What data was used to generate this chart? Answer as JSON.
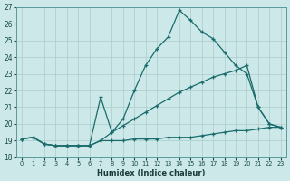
{
  "xlabel": "Humidex (Indice chaleur)",
  "bg_color": "#cce8e8",
  "line_color": "#1a6b6b",
  "grid_color": "#aacccc",
  "xlim": [
    -0.5,
    23.5
  ],
  "ylim": [
    18,
    27
  ],
  "xticks": [
    0,
    1,
    2,
    3,
    4,
    5,
    6,
    7,
    8,
    9,
    10,
    11,
    12,
    13,
    14,
    15,
    16,
    17,
    18,
    19,
    20,
    21,
    22,
    23
  ],
  "yticks": [
    18,
    19,
    20,
    21,
    22,
    23,
    24,
    25,
    26,
    27
  ],
  "line_flat_x": [
    0,
    1,
    2,
    3,
    4,
    5,
    6,
    7,
    8,
    9,
    10,
    11,
    12,
    13,
    14,
    15,
    16,
    17,
    18,
    19,
    20,
    21,
    22,
    23
  ],
  "line_flat_y": [
    19.1,
    19.2,
    18.8,
    18.7,
    18.7,
    18.7,
    18.7,
    19.0,
    19.0,
    19.0,
    19.1,
    19.1,
    19.1,
    19.2,
    19.2,
    19.2,
    19.3,
    19.4,
    19.5,
    19.6,
    19.6,
    19.7,
    19.8,
    19.8
  ],
  "line_diag_x": [
    0,
    1,
    2,
    3,
    4,
    5,
    6,
    7,
    8,
    9,
    10,
    11,
    12,
    13,
    14,
    15,
    16,
    17,
    18,
    19,
    20,
    21,
    22,
    23
  ],
  "line_diag_y": [
    19.1,
    19.2,
    18.8,
    18.7,
    18.7,
    18.7,
    18.7,
    19.0,
    19.5,
    19.9,
    20.3,
    20.7,
    21.1,
    21.5,
    21.9,
    22.2,
    22.5,
    22.8,
    23.0,
    23.2,
    23.5,
    21.0,
    20.0,
    19.8
  ],
  "line_peak_x": [
    0,
    1,
    2,
    3,
    4,
    5,
    6,
    7,
    8,
    9,
    10,
    11,
    12,
    13,
    14,
    15,
    16,
    17,
    18,
    19,
    20,
    21,
    22,
    23
  ],
  "line_peak_y": [
    19.1,
    19.2,
    18.8,
    18.7,
    18.7,
    18.7,
    18.7,
    21.6,
    19.5,
    20.3,
    22.0,
    23.5,
    24.5,
    25.2,
    26.8,
    26.2,
    25.5,
    25.1,
    24.3,
    23.5,
    23.0,
    21.0,
    20.0,
    19.8
  ]
}
